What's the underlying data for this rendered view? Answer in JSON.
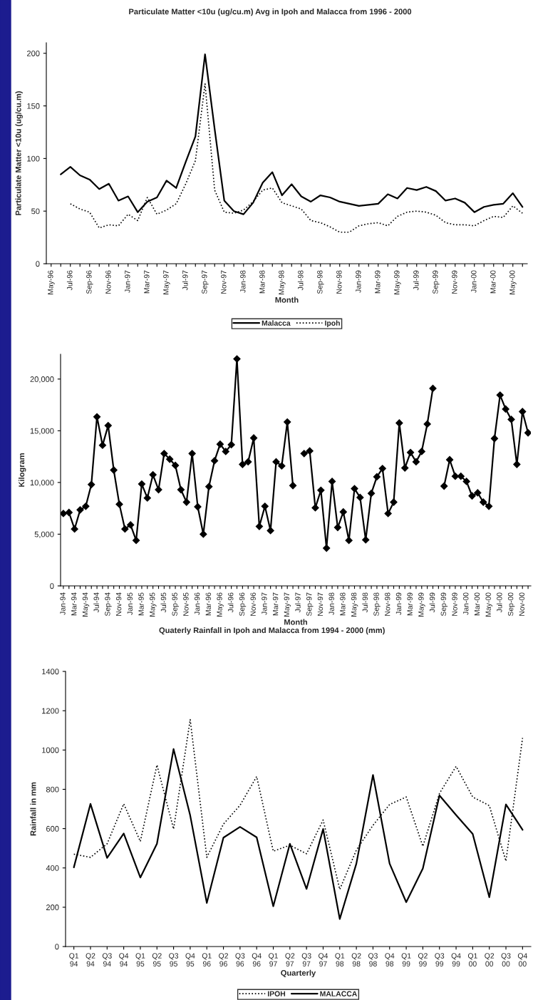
{
  "chart_data": [
    {
      "type": "line",
      "title": "Particulate Matter <10u (ug/cu.m) Avg in Ipoh and Malacca from 1996 - 2000",
      "xlabel": "Month",
      "ylabel": "Particulate Matter <10u (ug/cu.m)",
      "categories": [
        "May-96",
        null,
        "Jul-96",
        null,
        "Sep-96",
        null,
        "Nov-96",
        null,
        "Jan-97",
        null,
        "Mar-97",
        null,
        "May-97",
        null,
        "Jul-97",
        null,
        "Sep-97",
        null,
        "Nov-97",
        null,
        "Jan-98",
        null,
        "Mar-98",
        null,
        "May-98",
        null,
        "Jul-98",
        null,
        "Sep-98",
        null,
        "Nov-98",
        null,
        "Jan-99",
        null,
        "Mar-99",
        null,
        "May-99",
        null,
        "Jul-99",
        null,
        "Sep-99",
        null,
        "Nov-99",
        null,
        "Jan-00",
        null,
        "Mar-00",
        null,
        "May-00",
        null
      ],
      "series": [
        {
          "name": "Malacca",
          "color": "#000000",
          "line_style": "solid",
          "values": [
            null,
            85,
            92,
            84,
            80,
            71,
            76,
            60,
            64,
            49,
            59,
            63,
            79,
            72,
            97,
            121,
            199,
            128,
            60,
            50,
            47,
            58,
            77,
            87,
            65,
            75.5,
            64,
            59,
            65,
            63,
            59,
            57,
            55,
            56,
            57,
            66,
            62,
            72,
            70,
            73,
            69,
            60,
            62,
            58,
            49,
            54,
            56,
            57,
            67,
            54
          ]
        },
        {
          "name": "Ipoh",
          "color": "#000000",
          "line_style": "dotted",
          "values": [
            null,
            null,
            57,
            52,
            49,
            34,
            37,
            36,
            47,
            41,
            63,
            47,
            51,
            57,
            76,
            98,
            171,
            70,
            49,
            48,
            51,
            59,
            70,
            72,
            58,
            55,
            52,
            41,
            39,
            35,
            30,
            30,
            36,
            38,
            39,
            36,
            45,
            49,
            50,
            49,
            46,
            39,
            37,
            37,
            36,
            41,
            45,
            44,
            55,
            48
          ]
        }
      ],
      "ylim": [
        0,
        210
      ],
      "yticks": [
        0,
        50,
        100,
        150,
        200
      ],
      "grid": false,
      "legend": "bottom"
    },
    {
      "type": "line",
      "xlabel": "Month",
      "ylabel": "Kilogram",
      "marker": "diamond",
      "categories": [
        "Jan-94",
        null,
        "Mar-94",
        null,
        "May-94",
        null,
        "Jul-94",
        null,
        "Sep-94",
        null,
        "Nov-94",
        null,
        "Jan-95",
        null,
        "Mar-95",
        null,
        "May-95",
        null,
        "Jul-95",
        null,
        "Sep-95",
        null,
        "Nov-95",
        null,
        "Jan-96",
        null,
        "Mar-96",
        null,
        "May-96",
        null,
        "Jul-96",
        null,
        "Sep-96",
        null,
        "Nov-96",
        null,
        "Jan-97",
        null,
        "Mar-97",
        null,
        "May-97",
        null,
        "Jul-97",
        null,
        "Sep-97",
        null,
        "Nov-97",
        null,
        "Jan-98",
        null,
        "Mar-98",
        null,
        "May-98",
        null,
        "Jul-98",
        null,
        "Sep-98",
        null,
        "Nov-98",
        null,
        "Jan-99",
        null,
        "Mar-99",
        null,
        "May-99",
        null,
        "Jul-99",
        null,
        "Sep-99",
        null,
        "Nov-99",
        null,
        "Jan-00",
        null,
        "Mar-00",
        null,
        "May-00",
        null,
        "Jul-00",
        null,
        "Sep-00",
        null,
        "Nov-00",
        null
      ],
      "series": [
        {
          "color": "#000000",
          "line_style": "solid",
          "values": [
            7000,
            7100,
            5500,
            7350,
            7700,
            9800,
            16350,
            13600,
            15500,
            11200,
            7900,
            5500,
            5900,
            4400,
            9850,
            8500,
            10750,
            9300,
            12800,
            12250,
            11650,
            9300,
            8100,
            12800,
            7650,
            5000,
            9600,
            12100,
            13700,
            13000,
            13650,
            21950,
            11750,
            12000,
            14300,
            5750,
            7700,
            5350,
            12000,
            11600,
            15850,
            9700,
            null,
            12800,
            13050,
            7550,
            9250,
            3650,
            10100,
            5650,
            7150,
            4400,
            9400,
            8550,
            4450,
            8950,
            10550,
            11350,
            7000,
            8100,
            15750,
            11400,
            12900,
            12000,
            13000,
            15650,
            19100,
            null,
            9650,
            12200,
            10600,
            10600,
            10100,
            8700,
            9000,
            8100,
            7700,
            14250,
            18450,
            17100,
            16100,
            11750,
            16850,
            14800
          ]
        }
      ],
      "ylim": [
        0,
        22400
      ],
      "yticks": [
        0,
        {
          "value": 5000,
          "label": "5,000"
        },
        {
          "value": 10000,
          "label": "10,000"
        },
        {
          "value": 15000,
          "label": "15,000"
        },
        {
          "value": 20000,
          "label": "20,000"
        }
      ],
      "grid": false
    },
    {
      "type": "line",
      "title": "Quaterly Rainfall in Ipoh and Malacca from 1994 - 2000 (mm)",
      "xlabel": "Quarterly",
      "ylabel": "Rainfall in mm",
      "categories": [
        "Q1\n94",
        "Q2\n94",
        "Q3\n94",
        "Q4\n94",
        "Q1\n95",
        "Q2\n95",
        "Q3\n95",
        "Q4\n95",
        "Q1\n96",
        "Q2\n96",
        "Q3\n96",
        "Q4\n96",
        "Q1\n97",
        "Q2\n97",
        "Q3\n97",
        "Q4\n97",
        "Q1\n98",
        "Q2\n98",
        "Q3\n98",
        "Q4\n98",
        "Q1\n99",
        "Q2\n99",
        "Q3\n99",
        "Q4\n99",
        "Q1\n00",
        "Q2\n00",
        "Q3\n00",
        "Q4\n00"
      ],
      "series": [
        {
          "name": "IPOH",
          "color": "#000000",
          "line_style": "dotted",
          "values": [
            470,
            454,
            523,
            726,
            535,
            924,
            598,
            1155,
            454,
            623,
            719,
            865,
            485,
            516,
            472,
            644,
            291,
            491,
            617,
            723,
            761,
            510,
            779,
            917,
            761,
            717,
            435,
            1061
          ]
        },
        {
          "name": "MALACCA",
          "color": "#000000",
          "line_style": "solid",
          "values": [
            403,
            726,
            451,
            575,
            351,
            523,
            1005,
            667,
            222,
            554,
            609,
            556,
            205,
            523,
            293,
            598,
            140,
            422,
            873,
            422,
            226,
            397,
            769,
            669,
            573,
            251,
            723,
            594
          ]
        }
      ],
      "ylim": [
        0,
        1400
      ],
      "yticks": [
        0,
        200,
        400,
        600,
        800,
        1000,
        1200,
        1400
      ],
      "grid": false,
      "legend": "bottom"
    }
  ]
}
